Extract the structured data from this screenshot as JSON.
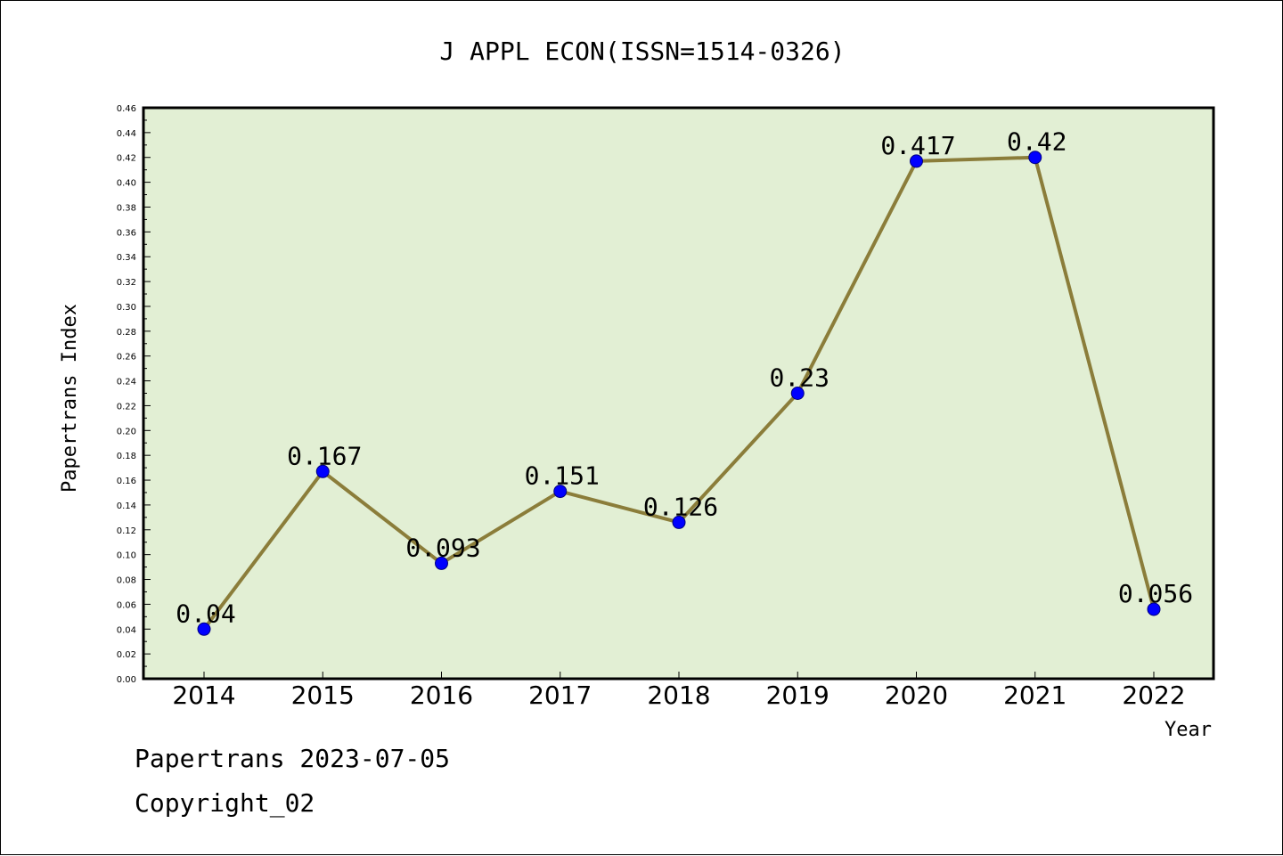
{
  "chart_data": {
    "type": "line",
    "title": "J APPL ECON(ISSN=1514-0326)",
    "xlabel": "Year",
    "ylabel": "Papertrans Index",
    "x": [
      "2014",
      "2015",
      "2016",
      "2017",
      "2018",
      "2019",
      "2020",
      "2021",
      "2022"
    ],
    "series": [
      {
        "values": [
          0.04,
          0.167,
          0.093,
          0.151,
          0.126,
          0.23,
          0.417,
          0.42,
          0.056
        ],
        "labels": [
          "0.04",
          "0.167",
          "0.093",
          "0.151",
          "0.126",
          "0.23",
          "0.417",
          "0.42",
          "0.056"
        ]
      }
    ],
    "ylim": [
      0,
      0.46
    ],
    "yticks": [
      "0.00",
      "0.02",
      "0.04",
      "0.06",
      "0.08",
      "0.10",
      "0.12",
      "0.14",
      "0.16",
      "0.18",
      "0.20",
      "0.22",
      "0.24",
      "0.26",
      "0.28",
      "0.30",
      "0.32",
      "0.34",
      "0.36",
      "0.38",
      "0.40",
      "0.42",
      "0.44",
      "0.46"
    ],
    "grid": false,
    "legend": "none",
    "colors": {
      "plot_background": "#e2efd4",
      "line": "#8b7d3a",
      "marker": "#0000ff"
    }
  },
  "footer": {
    "date_text": "Papertrans 2023-07-05",
    "copyright_text": "Copyright_02"
  }
}
